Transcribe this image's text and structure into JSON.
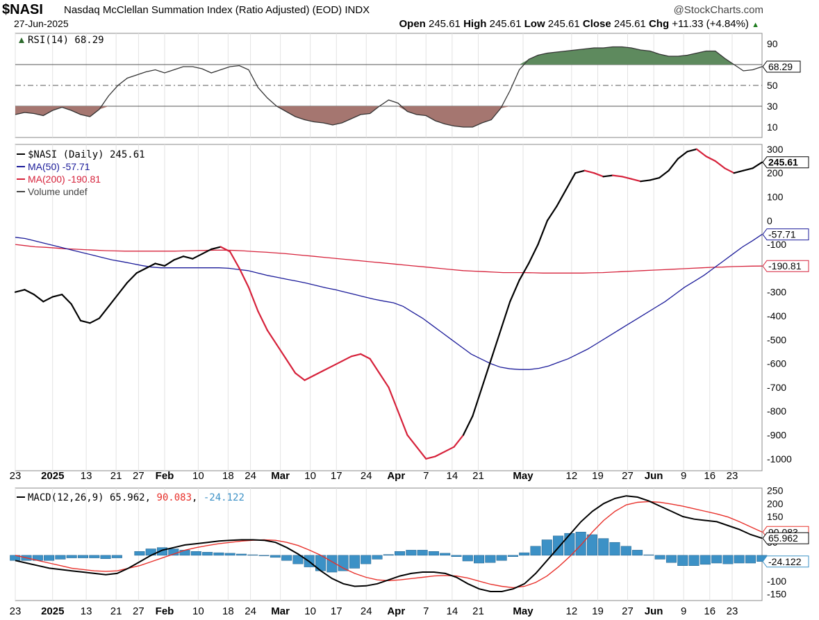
{
  "header": {
    "symbol": "$NASI",
    "title": "Nasdaq McClellan Summation Index (Ratio Adjusted) (EOD)",
    "exchange": "INDX",
    "brand": "@StockCharts.com",
    "date": "27-Jun-2025",
    "open_label": "Open",
    "open": "245.61",
    "high_label": "High",
    "high": "245.61",
    "low_label": "Low",
    "low": "245.61",
    "close_label": "Close",
    "close": "245.61",
    "chg_label": "Chg",
    "chg": "+11.33 (+4.84%)"
  },
  "x_axis_labels": [
    "23",
    "2025",
    "13",
    "21",
    "27",
    "Feb",
    "10",
    "18",
    "24",
    "Mar",
    "10",
    "17",
    "24",
    "Apr",
    "7",
    "14",
    "21",
    "May",
    "12",
    "19",
    "27",
    "Jun",
    "9",
    "16",
    "23"
  ],
  "colors": {
    "price": "#000000",
    "ma50": "#1a1a99",
    "ma200": "#d6213a",
    "rsi_up": "#5e8a5e",
    "rsi_down": "#a57670",
    "macd_hist": "#3c91c6",
    "macd_signal": "#e8302a"
  },
  "chart_data": [
    {
      "type": "line",
      "panel": "rsi",
      "legend": "RSI(14) 68.29",
      "value_label": "68.29",
      "y_ticks": [
        10,
        30,
        50,
        70,
        90
      ],
      "y_tick_labels": [
        "10",
        "30",
        "50",
        "",
        "90"
      ],
      "ylim": [
        0,
        100
      ],
      "reference_lines": [
        30,
        50,
        70
      ],
      "values": [
        22,
        24,
        23,
        21,
        26,
        29,
        26,
        22,
        20,
        27,
        40,
        50,
        57,
        60,
        63,
        65,
        62,
        65,
        68,
        68,
        66,
        62,
        65,
        68,
        69,
        65,
        48,
        38,
        30,
        25,
        20,
        17,
        15,
        14,
        12,
        14,
        18,
        22,
        23,
        30,
        36,
        33,
        25,
        22,
        21,
        16,
        13,
        11,
        10,
        10,
        14,
        17,
        28,
        45,
        65,
        75,
        79,
        81,
        82,
        83,
        84,
        85,
        86,
        86,
        87,
        87,
        86,
        84,
        83,
        80,
        78,
        78,
        79,
        81,
        83,
        83,
        76,
        70,
        64,
        65,
        68
      ]
    },
    {
      "type": "line",
      "panel": "price",
      "ylim": [
        -1050,
        320
      ],
      "y_ticks": [
        -1000,
        -900,
        -800,
        -700,
        -600,
        -500,
        -400,
        -300,
        -200,
        -100,
        0,
        100,
        200,
        300
      ],
      "y_tick_labels": [
        "-1000",
        "-900",
        "-800",
        "-700",
        "-600",
        "-500",
        "-400",
        "-300",
        "-200",
        "-100",
        "0",
        "100",
        "200",
        "300"
      ],
      "series": [
        {
          "name": "$NASI (Daily) 245.61",
          "legend": "$NASI (Daily) 245.61",
          "value_label": "245.61",
          "values": [
            -300,
            -290,
            -310,
            -340,
            -320,
            -310,
            -350,
            -420,
            -430,
            -410,
            -360,
            -310,
            -260,
            -220,
            -200,
            -180,
            -190,
            -165,
            -150,
            -160,
            -140,
            -120,
            -110,
            -130,
            -200,
            -280,
            -380,
            -460,
            -520,
            -580,
            -640,
            -670,
            -650,
            -630,
            -610,
            -590,
            -570,
            -560,
            -580,
            -640,
            -700,
            -800,
            -900,
            -950,
            -1000,
            -990,
            -970,
            -950,
            -900,
            -820,
            -700,
            -580,
            -460,
            -340,
            -250,
            -180,
            -100,
            0,
            60,
            130,
            200,
            210,
            200,
            185,
            190,
            185,
            175,
            165,
            170,
            180,
            210,
            260,
            290,
            300,
            270,
            250,
            220,
            200,
            210,
            220,
            245
          ]
        },
        {
          "name": "MA(50) -57.71",
          "legend": "MA(50) -57.71",
          "value_label": "-57.71",
          "values": [
            -70,
            -75,
            -85,
            -95,
            -105,
            -115,
            -125,
            -135,
            -145,
            -155,
            -165,
            -172,
            -180,
            -188,
            -195,
            -198,
            -198,
            -198,
            -198,
            -198,
            -198,
            -198,
            -200,
            -205,
            -210,
            -220,
            -230,
            -238,
            -246,
            -254,
            -262,
            -272,
            -282,
            -290,
            -300,
            -310,
            -320,
            -330,
            -338,
            -345,
            -360,
            -385,
            -410,
            -440,
            -470,
            -500,
            -530,
            -560,
            -580,
            -600,
            -615,
            -622,
            -625,
            -625,
            -620,
            -610,
            -595,
            -580,
            -560,
            -540,
            -515,
            -490,
            -465,
            -440,
            -415,
            -390,
            -365,
            -340,
            -310,
            -280,
            -255,
            -230,
            -200,
            -170,
            -140,
            -110,
            -85,
            -57.71
          ]
        },
        {
          "name": "MA(200) -190.81",
          "legend": "MA(200) -190.81",
          "value_label": "-190.81",
          "values": [
            -100,
            -105,
            -110,
            -112,
            -115,
            -118,
            -120,
            -122,
            -124,
            -126,
            -127,
            -128,
            -128,
            -128,
            -128,
            -128,
            -128,
            -127,
            -126,
            -125,
            -124,
            -124,
            -125,
            -127,
            -130,
            -132,
            -135,
            -138,
            -142,
            -146,
            -150,
            -154,
            -158,
            -162,
            -166,
            -170,
            -174,
            -178,
            -182,
            -186,
            -190,
            -194,
            -198,
            -202,
            -206,
            -210,
            -212,
            -214,
            -216,
            -218,
            -218,
            -218,
            -219,
            -220,
            -220,
            -220,
            -220,
            -220,
            -219,
            -218,
            -216,
            -214,
            -212,
            -210,
            -208,
            -206,
            -204,
            -202,
            -200,
            -198,
            -196,
            -195,
            -193,
            -192,
            -191,
            -190.81
          ]
        },
        {
          "name": "Volume undef",
          "legend": "Volume undef",
          "values": []
        }
      ]
    },
    {
      "type": "line",
      "panel": "macd",
      "legend_prefix": "MACD(12,26,9)",
      "macd_value": "65.962",
      "signal_value": "90.083",
      "hist_value": "-24.122",
      "value_labels": [
        "90.083",
        "65.962",
        "-24.122"
      ],
      "ylim": [
        -175,
        260
      ],
      "y_ticks": [
        -150,
        -100,
        50,
        100,
        150,
        200,
        250
      ],
      "y_tick_labels": [
        "-150",
        "-100",
        "50",
        "100",
        "150",
        "200",
        "250"
      ],
      "series": [
        {
          "name": "MACD",
          "values": [
            -20,
            -30,
            -40,
            -50,
            -55,
            -60,
            -65,
            -70,
            -75,
            -70,
            -50,
            -25,
            0,
            20,
            30,
            40,
            45,
            50,
            55,
            58,
            60,
            60,
            58,
            50,
            30,
            5,
            -25,
            -60,
            -90,
            -110,
            -120,
            -118,
            -110,
            -95,
            -80,
            -70,
            -65,
            -65,
            -70,
            -85,
            -110,
            -130,
            -140,
            -140,
            -130,
            -110,
            -70,
            -20,
            30,
            80,
            130,
            170,
            200,
            220,
            230,
            225,
            210,
            190,
            170,
            150,
            140,
            135,
            130,
            115,
            100,
            80,
            66
          ]
        },
        {
          "name": "Signal",
          "values": [
            0,
            -10,
            -20,
            -30,
            -40,
            -50,
            -55,
            -60,
            -62,
            -60,
            -50,
            -40,
            -25,
            -10,
            5,
            20,
            30,
            38,
            45,
            50,
            55,
            58,
            60,
            58,
            50,
            38,
            20,
            0,
            -25,
            -50,
            -70,
            -85,
            -95,
            -98,
            -95,
            -90,
            -85,
            -80,
            -78,
            -80,
            -88,
            -100,
            -112,
            -120,
            -125,
            -120,
            -105,
            -80,
            -45,
            -5,
            40,
            90,
            135,
            170,
            195,
            205,
            208,
            205,
            198,
            190,
            180,
            170,
            160,
            148,
            130,
            110,
            90
          ]
        },
        {
          "name": "Histogram",
          "values": [
            -20,
            -20,
            -20,
            -20,
            -15,
            -10,
            -10,
            -10,
            -13,
            -10,
            0,
            15,
            25,
            30,
            25,
            20,
            15,
            12,
            10,
            8,
            5,
            2,
            -2,
            -8,
            -20,
            -33,
            -45,
            -60,
            -65,
            -60,
            -50,
            -33,
            -15,
            3,
            15,
            20,
            20,
            15,
            8,
            -5,
            -22,
            -30,
            -28,
            -20,
            -5,
            10,
            35,
            60,
            75,
            85,
            90,
            80,
            65,
            50,
            35,
            20,
            2,
            -15,
            -28,
            -40,
            -40,
            -35,
            -30,
            -33,
            -30,
            -30,
            -24
          ]
        }
      ]
    }
  ]
}
